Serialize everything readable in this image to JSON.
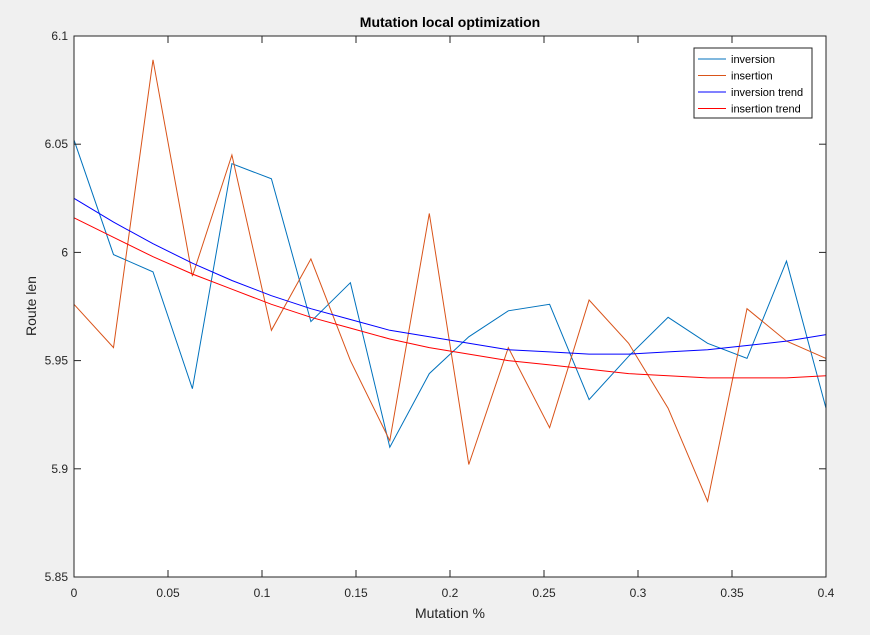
{
  "chart_data": {
    "type": "line",
    "title": "Mutation local optimization",
    "xlabel": "Mutation %",
    "ylabel": "Route len",
    "xlim": [
      0,
      0.4
    ],
    "ylim": [
      5.85,
      6.1
    ],
    "xticks": [
      0,
      0.05,
      0.1,
      0.15,
      0.2,
      0.25,
      0.3,
      0.35,
      0.4
    ],
    "xtick_labels": [
      "0",
      "0.05",
      "0.1",
      "0.15",
      "0.2",
      "0.25",
      "0.3",
      "0.35",
      "0.4"
    ],
    "yticks": [
      5.85,
      5.9,
      5.95,
      6.0,
      6.05,
      6.1
    ],
    "ytick_labels": [
      "5.85",
      "5.9",
      "5.95",
      "6",
      "6.05",
      "6.1"
    ],
    "grid": false,
    "legend_position": "top-right",
    "x": [
      0,
      0.021,
      0.042,
      0.063,
      0.084,
      0.105,
      0.126,
      0.147,
      0.168,
      0.189,
      0.21,
      0.231,
      0.253,
      0.274,
      0.295,
      0.316,
      0.337,
      0.358,
      0.379,
      0.4
    ],
    "series": [
      {
        "name": "inversion",
        "color": "#0072BD",
        "values": [
          6.052,
          5.999,
          5.991,
          5.937,
          6.041,
          6.034,
          5.968,
          5.986,
          5.91,
          5.944,
          5.961,
          5.973,
          5.976,
          5.932,
          5.952,
          5.97,
          5.958,
          5.951,
          5.996,
          5.928
        ]
      },
      {
        "name": "insertion",
        "color": "#D95319",
        "values": [
          5.976,
          5.956,
          6.089,
          5.989,
          6.045,
          5.964,
          5.997,
          5.95,
          5.913,
          6.018,
          5.902,
          5.956,
          5.919,
          5.978,
          5.958,
          5.928,
          5.885,
          5.974,
          5.959,
          5.951
        ]
      },
      {
        "name": "inversion trend",
        "color": "#0000FF",
        "values": [
          6.025,
          6.014,
          6.004,
          5.995,
          5.987,
          5.98,
          5.974,
          5.969,
          5.964,
          5.961,
          5.958,
          5.955,
          5.954,
          5.953,
          5.953,
          5.954,
          5.955,
          5.957,
          5.959,
          5.962
        ]
      },
      {
        "name": "insertion trend",
        "color": "#FF0000",
        "values": [
          6.016,
          6.007,
          5.998,
          5.99,
          5.983,
          5.976,
          5.97,
          5.965,
          5.96,
          5.956,
          5.953,
          5.95,
          5.948,
          5.946,
          5.944,
          5.943,
          5.942,
          5.942,
          5.942,
          5.943
        ]
      }
    ]
  }
}
